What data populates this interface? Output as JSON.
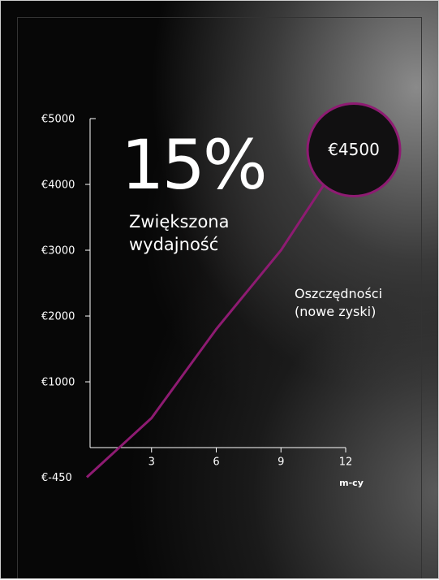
{
  "chart_data": {
    "type": "line",
    "headline": "15%",
    "headline_caption": "Zwiększona wydajność",
    "callout": "€4500",
    "x_label": "m-cy",
    "x": [
      0,
      1.5,
      3,
      6,
      9,
      12
    ],
    "series": [
      {
        "name": "Oszczędności (nowe zyski)",
        "color": "#8e1b72",
        "values": [
          -450,
          0,
          450,
          1800,
          3000,
          4500
        ]
      }
    ],
    "xlim": [
      0,
      12
    ],
    "xticks": [
      3,
      6,
      9,
      12
    ],
    "ylim": [
      -450,
      5000
    ],
    "yticks": [
      {
        "value": -450,
        "label": "€-450"
      },
      {
        "value": 1000,
        "label": "€1000"
      },
      {
        "value": 2000,
        "label": "€2000"
      },
      {
        "value": 3000,
        "label": "€3000"
      },
      {
        "value": 4000,
        "label": "€4000"
      },
      {
        "value": 5000,
        "label": "€5000"
      }
    ]
  }
}
